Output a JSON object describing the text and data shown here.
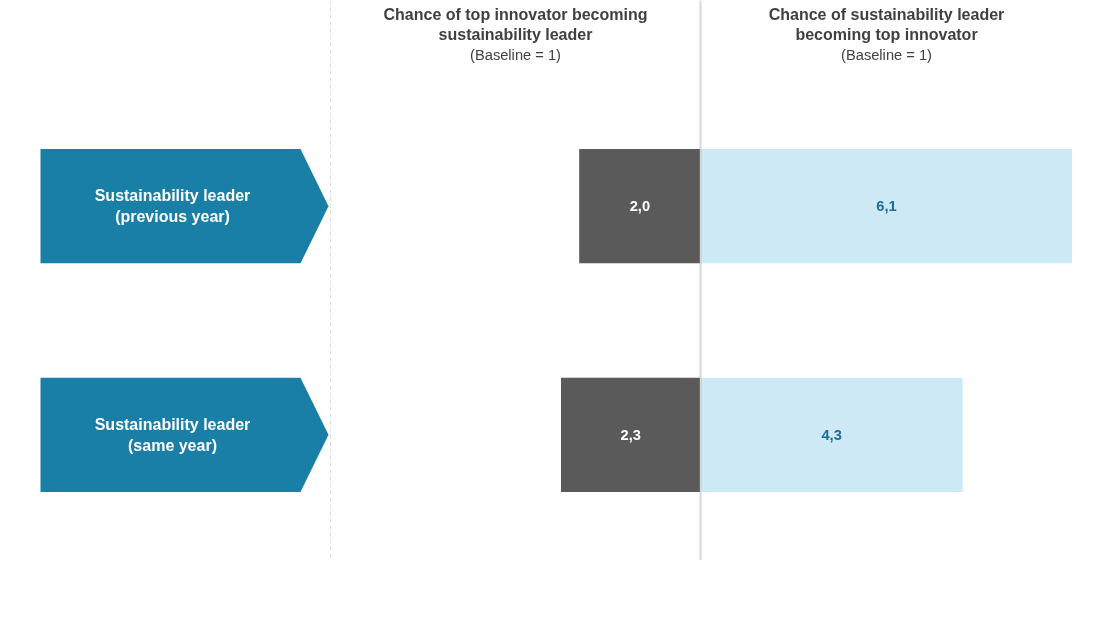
{
  "chart_data": [
    {
      "type": "bar",
      "orientation": "horizontal",
      "title": "Chance of top innovator becoming sustainability leader",
      "subtitle": "(Baseline = 1)",
      "categories": [
        "Sustainability leader (previous year)",
        "Sustainability leader (same year)"
      ],
      "values": [
        2.0,
        2.3
      ],
      "value_labels": [
        "2,0",
        "2,3"
      ],
      "color": "#5a5a5a",
      "xlim": [
        6.1,
        0
      ],
      "tick_labels": false
    },
    {
      "type": "bar",
      "orientation": "horizontal",
      "title": "Chance of sustainability leader becoming top innovator",
      "subtitle": "(Baseline = 1)",
      "categories": [
        null,
        null
      ],
      "values": [
        6.1,
        4.3
      ],
      "value_labels": [
        "6,1",
        "4,3"
      ],
      "color": "#cde9f5",
      "xlim": [
        0,
        6.1
      ],
      "tick_labels": false
    }
  ]
}
